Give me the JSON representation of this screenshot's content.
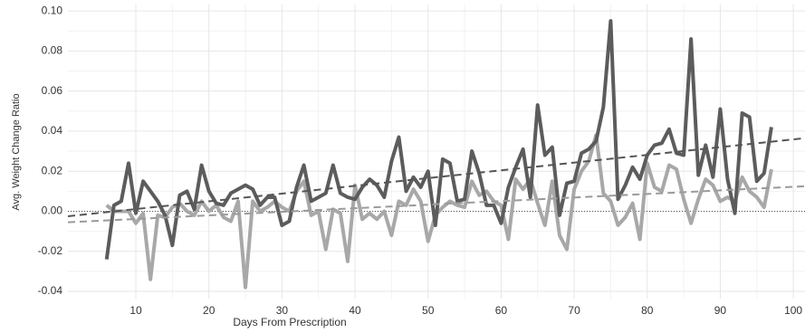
{
  "chart_data": {
    "type": "line",
    "x_label": "Days From Prescription",
    "y_label": "Avg. Weight Change Ratio",
    "xlim": [
      0.7,
      101.6
    ],
    "ylim": [
      -0.0436,
      0.1032
    ],
    "xticks": [
      10,
      20,
      30,
      40,
      50,
      60,
      70,
      80,
      90,
      100
    ],
    "yticks": [
      {
        "value": -0.04,
        "label": "-0.04"
      },
      {
        "value": -0.02,
        "label": "-0.02"
      },
      {
        "value": 0,
        "label": "0.00"
      },
      {
        "value": 0.02,
        "label": "0.02"
      },
      {
        "value": 0.04,
        "label": "0.04"
      },
      {
        "value": 0.06,
        "label": "0.06"
      },
      {
        "value": 0.08,
        "label": "0.08"
      },
      {
        "value": 0.1,
        "label": "0.10"
      }
    ],
    "grid": true,
    "minor_grid": true,
    "reference_line": {
      "y": 0,
      "color": "#555555",
      "style": "dotted"
    },
    "x": [
      6,
      7,
      8,
      9,
      10,
      11,
      12,
      13,
      14,
      15,
      16,
      17,
      18,
      19,
      20,
      21,
      22,
      23,
      24,
      25,
      26,
      27,
      28,
      29,
      30,
      31,
      32,
      33,
      34,
      35,
      36,
      37,
      38,
      39,
      40,
      41,
      42,
      43,
      44,
      45,
      46,
      47,
      48,
      49,
      50,
      51,
      52,
      53,
      54,
      55,
      56,
      57,
      58,
      59,
      60,
      61,
      62,
      63,
      64,
      65,
      66,
      67,
      68,
      69,
      70,
      71,
      72,
      73,
      74,
      75,
      76,
      77,
      78,
      79,
      80,
      81,
      82,
      83,
      84,
      85,
      86,
      87,
      88,
      89,
      90,
      91,
      92,
      93,
      94,
      95,
      96,
      97
    ],
    "series": [
      {
        "color": "#a8a8a8",
        "style": "solid",
        "values": [
          0.003,
          0,
          0,
          0,
          -0.006,
          -0.001,
          -0.034,
          -0.002,
          -0.003,
          0.002,
          0.004,
          0,
          -0.002,
          0.005,
          0,
          0.003,
          -0.003,
          -0.005,
          0.005,
          -0.038,
          0.005,
          0,
          0.002,
          0.005,
          0.002,
          0,
          0.01,
          0.015,
          -0.002,
          0,
          -0.019,
          0.001,
          -0.001,
          -0.025,
          0.013,
          -0.004,
          -0.001,
          -0.004,
          0,
          -0.012,
          0.005,
          0.003,
          0.011,
          0.005,
          -0.015,
          -0.002,
          0.002,
          0.005,
          0.003,
          0.002,
          0.015,
          0.008,
          0.01,
          0.005,
          0.003,
          -0.014,
          0.016,
          0.011,
          0.016,
          0.004,
          -0.007,
          0.015,
          -0.012,
          -0.019,
          0.011,
          0.02,
          0.025,
          0.038,
          0.009,
          0.005,
          -0.007,
          -0.003,
          0.004,
          -0.014,
          0.024,
          0.012,
          0.01,
          0.023,
          0.021,
          0.006,
          -0.006,
          0.006,
          0.016,
          0.013,
          0.005,
          0.007,
          0.005,
          0.017,
          0.01,
          0.007,
          0.002,
          0.021
        ]
      },
      {
        "color": "#5c5c5c",
        "style": "solid",
        "values": [
          -0.024,
          0.003,
          0.005,
          0.024,
          -0.001,
          0.015,
          0.01,
          0.005,
          -0.002,
          -0.017,
          0.008,
          0.01,
          0.001,
          0.023,
          0.01,
          0.004,
          0.003,
          0.009,
          0.011,
          0.013,
          0.011,
          0.003,
          0.007,
          0.007,
          -0.007,
          -0.005,
          0.012,
          0.023,
          0.005,
          0.007,
          0.009,
          0.023,
          0.009,
          0.007,
          0.006,
          0.012,
          0.016,
          0.013,
          0.007,
          0.025,
          0.037,
          0.01,
          0.017,
          0.012,
          0.02,
          -0.007,
          0.026,
          0.024,
          0.005,
          0.006,
          0.03,
          0.019,
          0.003,
          0.003,
          -0.006,
          0.012,
          0.022,
          0.031,
          0.007,
          0.053,
          0.028,
          0.032,
          -0.002,
          0.014,
          0.015,
          0.029,
          0.031,
          0.035,
          0.052,
          0.095,
          0.006,
          0.013,
          0.022,
          0.016,
          0.028,
          0.033,
          0.034,
          0.041,
          0.029,
          0.028,
          0.086,
          0.018,
          0.033,
          0.017,
          0.051,
          0.016,
          -0.001,
          0.049,
          0.047,
          0.015,
          0.019,
          0.042
        ]
      },
      {
        "color": "#9a9a9a",
        "style": "dashed",
        "x": [
          0.7,
          101.6
        ],
        "values": [
          -0.0055,
          0.0125
        ]
      },
      {
        "color": "#555555",
        "style": "dashed",
        "x": [
          0.7,
          101.6
        ],
        "values": [
          -0.0025,
          0.0365
        ]
      }
    ]
  }
}
